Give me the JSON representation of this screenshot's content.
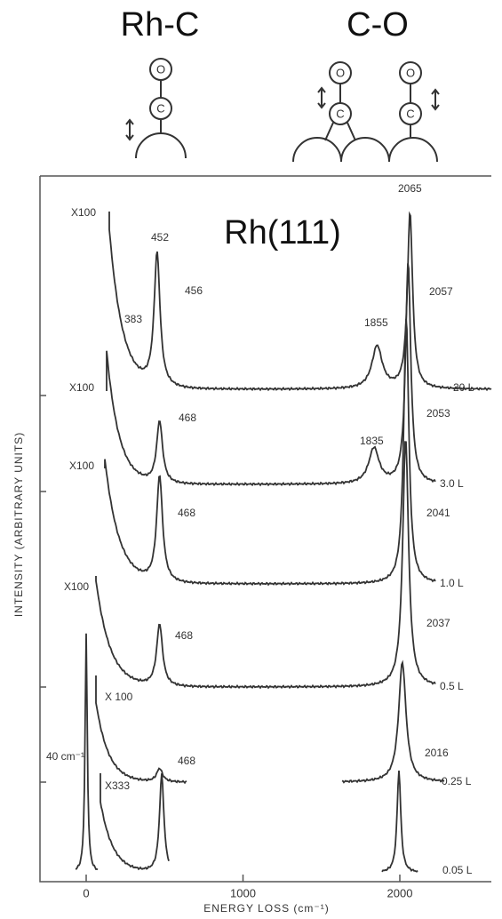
{
  "labels": {
    "rh_c": "Rh-C",
    "c_o": "C-O",
    "surface": "Rh(111)",
    "atoms": [
      "O",
      "C"
    ]
  },
  "y_axis_label": "INTENSITY (ARBITRARY UNITS)",
  "x_axis": {
    "label": "ENERGY LOSS (cm⁻¹)",
    "ticks": [
      0,
      1000,
      2000
    ]
  },
  "elastic_width": "40 cm⁻¹",
  "spectra": [
    {
      "exposure": "20 L",
      "scale": "X100",
      "peaks": [
        452,
        456,
        383,
        1855,
        2065,
        2057
      ]
    },
    {
      "exposure": "3.0 L",
      "scale": "X100",
      "peaks": [
        468,
        1835,
        2053
      ]
    },
    {
      "exposure": "1.0 L",
      "scale": "X100",
      "peaks": [
        468,
        2041
      ]
    },
    {
      "exposure": "0.5 L",
      "scale": "X100",
      "peaks": [
        468,
        2037
      ]
    },
    {
      "exposure": "0.25 L",
      "scale": "X 100",
      "peaks": [
        468,
        2016
      ]
    },
    {
      "exposure": "0.05 L",
      "scale": "X333",
      "peaks": []
    }
  ]
}
